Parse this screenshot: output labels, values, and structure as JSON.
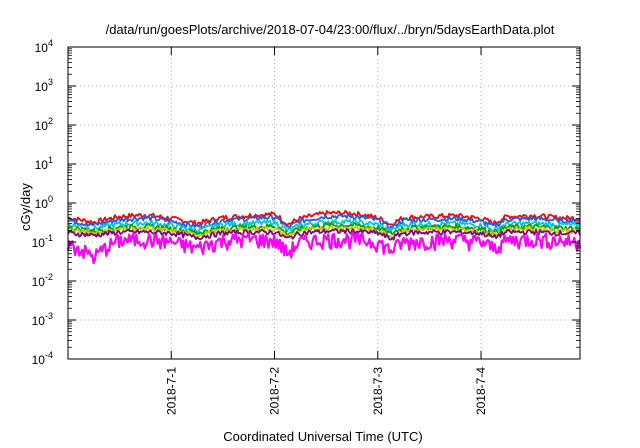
{
  "chart_data": {
    "type": "line",
    "title": "/data/run/goesPlots/archive/2018-07-04/23:00/flux/../bryn/5daysEarthData.plot",
    "xlabel": "Coordinated Universal Time (UTC)",
    "ylabel": "cGy/day",
    "yscale": "log",
    "ylim": [
      0.0001,
      10000
    ],
    "y_ticks": [
      {
        "base": "10",
        "exp": "-4"
      },
      {
        "base": "10",
        "exp": "-3"
      },
      {
        "base": "10",
        "exp": "-2"
      },
      {
        "base": "10",
        "exp": "-1"
      },
      {
        "base": "10",
        "exp": "0"
      },
      {
        "base": "10",
        "exp": "1"
      },
      {
        "base": "10",
        "exp": "2"
      },
      {
        "base": "10",
        "exp": "3"
      },
      {
        "base": "10",
        "exp": "4"
      }
    ],
    "xlim": [
      "2018-06-30T00:00",
      "2018-07-04T23:00"
    ],
    "x_ticks": [
      "2018-7-1",
      "2018-7-2",
      "2018-7-3",
      "2018-7-4"
    ],
    "grid": "dotted",
    "series_colors": [
      "#ff0000",
      "#1f5fe0",
      "#00c8c8",
      "#00a000",
      "#c8c800",
      "#800080",
      "#ff00ff"
    ],
    "series": [
      {
        "color": "#ff0000",
        "x": [
          "2018-06-30T00:00",
          "2018-06-30T06:00",
          "2018-06-30T12:00",
          "2018-06-30T18:00",
          "2018-07-01T00:00",
          "2018-07-01T06:00",
          "2018-07-01T12:00",
          "2018-07-01T18:00",
          "2018-07-02T00:00",
          "2018-07-02T03:00",
          "2018-07-02T06:00",
          "2018-07-02T12:00",
          "2018-07-02T18:00",
          "2018-07-03T00:00",
          "2018-07-03T03:00",
          "2018-07-03T06:00",
          "2018-07-03T12:00",
          "2018-07-03T18:00",
          "2018-07-04T00:00",
          "2018-07-04T03:00",
          "2018-07-04T06:00",
          "2018-07-04T12:00",
          "2018-07-04T18:00",
          "2018-07-04T23:00"
        ],
        "values": [
          0.42,
          0.32,
          0.45,
          0.5,
          0.4,
          0.3,
          0.42,
          0.48,
          0.52,
          0.28,
          0.4,
          0.55,
          0.55,
          0.42,
          0.28,
          0.42,
          0.45,
          0.48,
          0.4,
          0.3,
          0.45,
          0.48,
          0.42,
          0.4
        ]
      },
      {
        "color": "#1f5fe0",
        "x": [
          "2018-06-30T00:00",
          "2018-06-30T06:00",
          "2018-06-30T12:00",
          "2018-06-30T18:00",
          "2018-07-01T00:00",
          "2018-07-01T06:00",
          "2018-07-01T12:00",
          "2018-07-01T18:00",
          "2018-07-02T00:00",
          "2018-07-02T03:00",
          "2018-07-02T06:00",
          "2018-07-02T12:00",
          "2018-07-02T18:00",
          "2018-07-03T00:00",
          "2018-07-03T03:00",
          "2018-07-03T06:00",
          "2018-07-03T12:00",
          "2018-07-03T18:00",
          "2018-07-04T00:00",
          "2018-07-04T03:00",
          "2018-07-04T06:00",
          "2018-07-04T12:00",
          "2018-07-04T18:00",
          "2018-07-04T23:00"
        ],
        "values": [
          0.36,
          0.27,
          0.38,
          0.42,
          0.34,
          0.25,
          0.36,
          0.4,
          0.44,
          0.23,
          0.34,
          0.46,
          0.46,
          0.36,
          0.23,
          0.36,
          0.38,
          0.4,
          0.34,
          0.25,
          0.38,
          0.4,
          0.36,
          0.34
        ]
      },
      {
        "color": "#00c8c8",
        "x": [
          "2018-06-30T00:00",
          "2018-06-30T06:00",
          "2018-06-30T12:00",
          "2018-06-30T18:00",
          "2018-07-01T00:00",
          "2018-07-01T06:00",
          "2018-07-01T12:00",
          "2018-07-01T18:00",
          "2018-07-02T00:00",
          "2018-07-02T03:00",
          "2018-07-02T06:00",
          "2018-07-02T12:00",
          "2018-07-02T18:00",
          "2018-07-03T00:00",
          "2018-07-03T03:00",
          "2018-07-03T06:00",
          "2018-07-03T12:00",
          "2018-07-03T18:00",
          "2018-07-04T00:00",
          "2018-07-04T03:00",
          "2018-07-04T06:00",
          "2018-07-04T12:00",
          "2018-07-04T18:00",
          "2018-07-04T23:00"
        ],
        "values": [
          0.28,
          0.22,
          0.29,
          0.31,
          0.27,
          0.2,
          0.28,
          0.3,
          0.32,
          0.19,
          0.27,
          0.33,
          0.33,
          0.28,
          0.19,
          0.28,
          0.29,
          0.3,
          0.27,
          0.2,
          0.29,
          0.3,
          0.28,
          0.27
        ]
      },
      {
        "color": "#00a000",
        "x": [
          "2018-06-30T00:00",
          "2018-06-30T06:00",
          "2018-06-30T12:00",
          "2018-06-30T18:00",
          "2018-07-01T00:00",
          "2018-07-01T06:00",
          "2018-07-01T12:00",
          "2018-07-01T18:00",
          "2018-07-02T00:00",
          "2018-07-02T03:00",
          "2018-07-02T06:00",
          "2018-07-02T12:00",
          "2018-07-02T18:00",
          "2018-07-03T00:00",
          "2018-07-03T03:00",
          "2018-07-03T06:00",
          "2018-07-03T12:00",
          "2018-07-03T18:00",
          "2018-07-04T00:00",
          "2018-07-04T03:00",
          "2018-07-04T06:00",
          "2018-07-04T12:00",
          "2018-07-04T18:00",
          "2018-07-04T23:00"
        ],
        "values": [
          0.23,
          0.19,
          0.24,
          0.25,
          0.22,
          0.17,
          0.23,
          0.24,
          0.26,
          0.16,
          0.22,
          0.27,
          0.27,
          0.23,
          0.16,
          0.23,
          0.24,
          0.25,
          0.22,
          0.17,
          0.24,
          0.25,
          0.23,
          0.22
        ]
      },
      {
        "color": "#c8c800",
        "x": [
          "2018-06-30T00:00",
          "2018-06-30T06:00",
          "2018-06-30T12:00",
          "2018-06-30T18:00",
          "2018-07-01T00:00",
          "2018-07-01T06:00",
          "2018-07-01T12:00",
          "2018-07-01T18:00",
          "2018-07-02T00:00",
          "2018-07-02T03:00",
          "2018-07-02T06:00",
          "2018-07-02T12:00",
          "2018-07-02T18:00",
          "2018-07-03T00:00",
          "2018-07-03T03:00",
          "2018-07-03T06:00",
          "2018-07-03T12:00",
          "2018-07-03T18:00",
          "2018-07-04T00:00",
          "2018-07-04T03:00",
          "2018-07-04T06:00",
          "2018-07-04T12:00",
          "2018-07-04T18:00",
          "2018-07-04T23:00"
        ],
        "values": [
          0.2,
          0.17,
          0.21,
          0.22,
          0.19,
          0.15,
          0.2,
          0.21,
          0.22,
          0.14,
          0.19,
          0.23,
          0.23,
          0.2,
          0.14,
          0.2,
          0.21,
          0.22,
          0.19,
          0.15,
          0.21,
          0.22,
          0.2,
          0.19
        ]
      },
      {
        "color": "#800080",
        "x": [
          "2018-06-30T00:00",
          "2018-06-30T06:00",
          "2018-06-30T12:00",
          "2018-06-30T18:00",
          "2018-07-01T00:00",
          "2018-07-01T06:00",
          "2018-07-01T12:00",
          "2018-07-01T18:00",
          "2018-07-02T00:00",
          "2018-07-02T03:00",
          "2018-07-02T06:00",
          "2018-07-02T12:00",
          "2018-07-02T18:00",
          "2018-07-03T00:00",
          "2018-07-03T03:00",
          "2018-07-03T06:00",
          "2018-07-03T12:00",
          "2018-07-03T18:00",
          "2018-07-04T00:00",
          "2018-07-04T03:00",
          "2018-07-04T06:00",
          "2018-07-04T12:00",
          "2018-07-04T18:00",
          "2018-07-04T23:00"
        ],
        "values": [
          0.17,
          0.15,
          0.18,
          0.18,
          0.17,
          0.13,
          0.17,
          0.18,
          0.18,
          0.12,
          0.17,
          0.19,
          0.19,
          0.17,
          0.12,
          0.17,
          0.18,
          0.18,
          0.17,
          0.13,
          0.18,
          0.18,
          0.17,
          0.17
        ]
      },
      {
        "color": "#ff00ff",
        "x": [
          "2018-06-30T00:00",
          "2018-06-30T06:00",
          "2018-06-30T12:00",
          "2018-06-30T18:00",
          "2018-07-01T00:00",
          "2018-07-01T06:00",
          "2018-07-01T12:00",
          "2018-07-01T18:00",
          "2018-07-02T00:00",
          "2018-07-02T03:00",
          "2018-07-02T06:00",
          "2018-07-02T12:00",
          "2018-07-02T18:00",
          "2018-07-03T00:00",
          "2018-07-03T03:00",
          "2018-07-03T06:00",
          "2018-07-03T12:00",
          "2018-07-03T18:00",
          "2018-07-04T00:00",
          "2018-07-04T03:00",
          "2018-07-04T06:00",
          "2018-07-04T12:00",
          "2018-07-04T18:00",
          "2018-07-04T23:00"
        ],
        "values": [
          0.09,
          0.04,
          0.11,
          0.12,
          0.1,
          0.07,
          0.11,
          0.12,
          0.11,
          0.05,
          0.1,
          0.12,
          0.12,
          0.1,
          0.06,
          0.1,
          0.11,
          0.12,
          0.1,
          0.07,
          0.11,
          0.12,
          0.11,
          0.1
        ]
      }
    ]
  }
}
